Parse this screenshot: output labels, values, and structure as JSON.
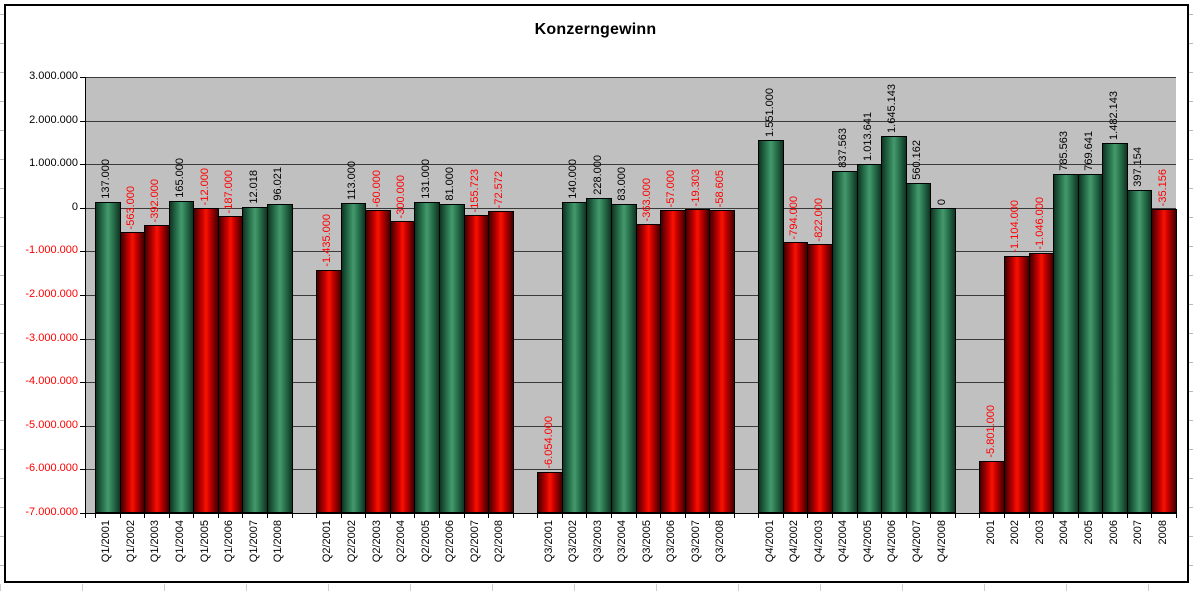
{
  "chart_data": {
    "type": "bar",
    "title": "Konzerngewinn",
    "xlabel": "",
    "ylabel": "",
    "ylim": [
      -7000000,
      3000000
    ],
    "ytick_interval": 1000000,
    "ytick_labels": [
      "3.000.000",
      "2.000.000",
      "1.000.000",
      "0",
      "-1.000.000",
      "-2.000.000",
      "-3.000.000",
      "-4.000.000",
      "-5.000.000",
      "-6.000.000",
      "-7.000.000"
    ],
    "grid": true,
    "legend": false,
    "plot_background": "#c0c0c0",
    "bar_baseline": "plot-bottom",
    "groups": [
      {
        "categories": [
          "Q1/2001",
          "Q1/2002",
          "Q1/2003",
          "Q1/2004",
          "Q1/2005",
          "Q1/2006",
          "Q1/2007",
          "Q1/2008"
        ],
        "values": [
          137000,
          -563000,
          -392000,
          165000,
          -12000,
          -187000,
          12018,
          96021
        ],
        "labels": [
          "137.000",
          "-563.000",
          "-392.000",
          "165.000",
          "-12.000",
          "-187.000",
          "12.018",
          "96.021"
        ]
      },
      {
        "categories": [
          "Q2/2001",
          "Q2/2002",
          "Q2/2003",
          "Q2/2004",
          "Q2/2005",
          "Q2/2006",
          "Q2/2007",
          "Q2/2008"
        ],
        "values": [
          -1435000,
          113000,
          -60000,
          -300000,
          131000,
          81000,
          -155723,
          -72572
        ],
        "labels": [
          "-1.435.000",
          "113.000",
          "-60.000",
          "-300.000",
          "131.000",
          "81.000",
          "-155.723",
          "-72.572"
        ]
      },
      {
        "categories": [
          "Q3/2001",
          "Q3/2002",
          "Q3/2003",
          "Q3/2004",
          "Q3/2005",
          "Q3/2006",
          "Q3/2007",
          "Q3/2008"
        ],
        "values": [
          -6054000,
          140000,
          228000,
          83000,
          -363000,
          -57000,
          -19303,
          -58605
        ],
        "labels": [
          "-6.054.000",
          "140.000",
          "228.000",
          "83.000",
          "-363.000",
          "-57.000",
          "-19.303",
          "-58.605"
        ]
      },
      {
        "categories": [
          "Q4/2001",
          "Q4/2002",
          "Q4/2003",
          "Q4/2004",
          "Q4/2005",
          "Q4/2006",
          "Q4/2007",
          "Q4/2008"
        ],
        "values": [
          1551000,
          -794000,
          -822000,
          837563,
          1013641,
          1645143,
          560162,
          0
        ],
        "labels": [
          "1.551.000",
          "-794.000",
          "-822.000",
          "837.563",
          "1.013.641",
          "1.645.143",
          "560.162",
          "0"
        ]
      },
      {
        "categories": [
          "2001",
          "2002",
          "2003",
          "2004",
          "2005",
          "2006",
          "2007",
          "2008"
        ],
        "values": [
          -5801000,
          -1104000,
          -1046000,
          785563,
          769641,
          1482143,
          397154,
          -35156
        ],
        "labels": [
          "-5.801.000",
          "-1.104.000",
          "-1.046.000",
          "785.563",
          "769.641",
          "1.482.143",
          "397.154",
          "-35.156"
        ]
      }
    ],
    "colors": {
      "positive_bar": "#2f7e56",
      "negative_bar": "#e00000",
      "positive_value_label": "#000000",
      "negative_value_label": "#ff0000",
      "axis_label_positive": "#000000",
      "axis_label_negative": "#ff0000",
      "category_label": "#000000"
    }
  }
}
